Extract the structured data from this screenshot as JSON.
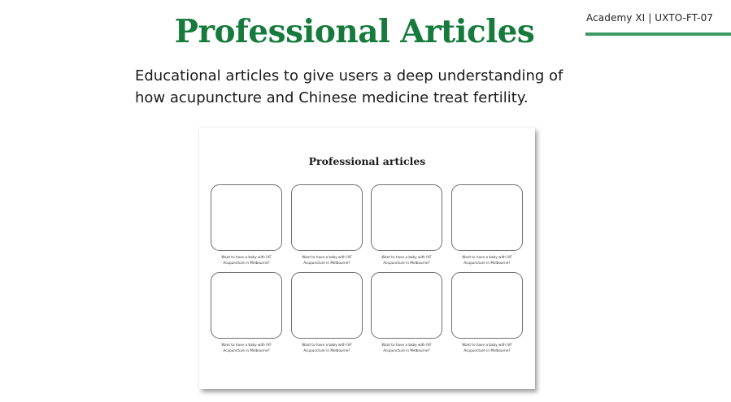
{
  "header": {
    "tag": "Academy XI | UXTO-FT-07",
    "title": "Professional Articles"
  },
  "intro": {
    "line1": "Educational articles to give users a deep understanding of",
    "line2": "how acupuncture and Chinese medicine treat fertility."
  },
  "mockup": {
    "title": "Professional articles",
    "cards": [
      {
        "line1": "Want to have a baby with IVF",
        "line2": "Acupuncture in Melbourne?"
      },
      {
        "line1": "Want to have a baby with IVF",
        "line2": "Acupuncture in Melbourne?"
      },
      {
        "line1": "Want to have a baby with IVF",
        "line2": "Acupuncture in Melbourne?"
      },
      {
        "line1": "Want to have a baby with IVF",
        "line2": "Acupuncture in Melbourne?"
      },
      {
        "line1": "Want to have a baby with IVF",
        "line2": "Acupuncture in Melbourne?"
      },
      {
        "line1": "Want to have a baby with IVF",
        "line2": "Acupuncture in Melbourne?"
      },
      {
        "line1": "Want to have a baby with IVF",
        "line2": "Acupuncture in Melbourne?"
      },
      {
        "line1": "Want to have a baby with IVF",
        "line2": "Acupuncture in Melbourne?"
      }
    ]
  },
  "colors": {
    "title_green": "#157a3c",
    "rule_green": "#3e9a62"
  }
}
